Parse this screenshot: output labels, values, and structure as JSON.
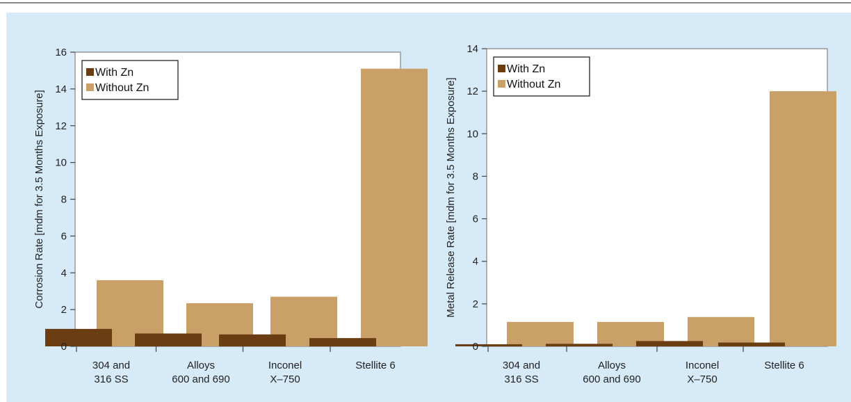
{
  "colors": {
    "page_background": "#ffffff",
    "panel_background": "#d6eaf8",
    "plot_background": "#ffffff",
    "top_rule": "#444444",
    "with_zn": "#6b3d12",
    "without_zn": "#c9a068"
  },
  "chart_data": [
    {
      "type": "bar",
      "title": "",
      "xlabel": "",
      "ylabel": "Corrosion Rate [mdm for 3.5 Months Exposure]",
      "ylim": [
        0,
        16
      ],
      "yticks": [
        "0",
        "2",
        "4",
        "6",
        "8",
        "10",
        "12",
        "14",
        "16"
      ],
      "categories": [
        [
          "304 and",
          "316 SS"
        ],
        [
          "Alloys",
          "600 and 690"
        ],
        [
          "Inconel",
          "X–750"
        ],
        [
          "Stellite 6"
        ]
      ],
      "legend_position": "top-left",
      "grid": false,
      "series": [
        {
          "name": "With Zn",
          "values": [
            0.95,
            0.7,
            0.65,
            0.45
          ]
        },
        {
          "name": "Without Zn",
          "values": [
            3.6,
            2.35,
            2.7,
            15.1
          ]
        }
      ]
    },
    {
      "type": "bar",
      "title": "",
      "xlabel": "",
      "ylabel": "Metal Release Rate [mdm for 3.5 Months Exposure]",
      "ylim": [
        0,
        14
      ],
      "yticks": [
        "0",
        "2",
        "4",
        "6",
        "8",
        "10",
        "12",
        "14"
      ],
      "categories": [
        [
          "304 and",
          "316 SS"
        ],
        [
          "Alloys",
          "600 and 690"
        ],
        [
          "Inconel",
          "X–750"
        ],
        [
          "Stellite 6"
        ]
      ],
      "legend_position": "top-left",
      "grid": false,
      "series": [
        {
          "name": "With Zn",
          "values": [
            0.1,
            0.12,
            0.25,
            0.18
          ]
        },
        {
          "name": "Without Zn",
          "values": [
            1.15,
            1.15,
            1.38,
            12.0
          ]
        }
      ]
    }
  ]
}
